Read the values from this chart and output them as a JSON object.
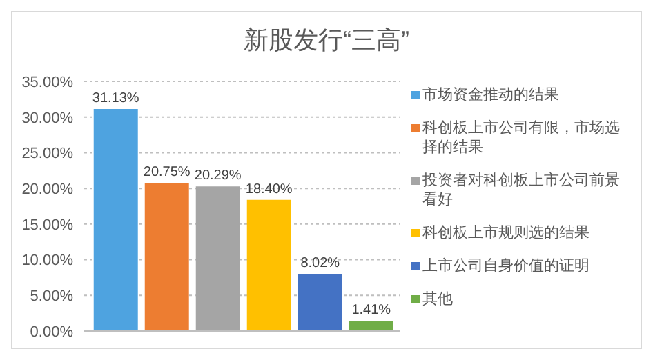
{
  "chart_data": {
    "type": "bar",
    "title": "新股发行“三高”",
    "categories": [
      null
    ],
    "series": [
      {
        "name": "市场资金推动的结果",
        "color": "#4ea3e0",
        "values": [
          31.13
        ],
        "value_labels": [
          "31.13%"
        ]
      },
      {
        "name": "科创板上市公司有限，市场选择的结果",
        "color": "#ed7d31",
        "values": [
          20.75
        ],
        "value_labels": [
          "20.75%"
        ]
      },
      {
        "name": "投资者对科创板上市公司前景看好",
        "color": "#a5a5a5",
        "values": [
          20.29
        ],
        "value_labels": [
          "20.29%"
        ]
      },
      {
        "name": "科创板上市规则选的结果",
        "color": "#ffc000",
        "values": [
          18.4
        ],
        "value_labels": [
          "18.40%"
        ]
      },
      {
        "name": "上市公司自身价值的证明",
        "color": "#4472c4",
        "values": [
          8.02
        ],
        "value_labels": [
          "8.02%"
        ]
      },
      {
        "name": "其他",
        "color": "#70ad47",
        "values": [
          1.41
        ],
        "value_labels": [
          "1.41%"
        ]
      }
    ],
    "ylim": [
      0,
      35
    ],
    "yticks": [
      {
        "value": 0,
        "label": "0.00%"
      },
      {
        "value": 5,
        "label": "5.00%"
      },
      {
        "value": 10,
        "label": "10.00%"
      },
      {
        "value": 15,
        "label": "15.00%"
      },
      {
        "value": 20,
        "label": "20.00%"
      },
      {
        "value": 25,
        "label": "25.00%"
      },
      {
        "value": 30,
        "label": "30.00%"
      },
      {
        "value": 35,
        "label": "35.00%"
      }
    ],
    "grid": "y",
    "legend": "right"
  }
}
